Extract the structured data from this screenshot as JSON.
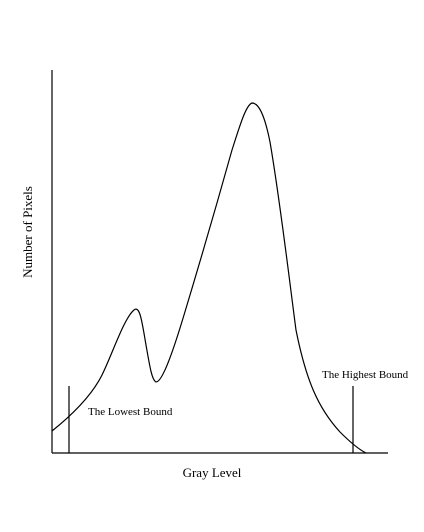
{
  "axes": {
    "xlabel": "Gray Level",
    "ylabel": "Number of Pixels"
  },
  "annotations": {
    "lowest_bound": "The Lowest Bound",
    "highest_bound": "The Highest Bound"
  },
  "colors": {
    "ink": "#000000",
    "background": "#ffffff"
  }
}
